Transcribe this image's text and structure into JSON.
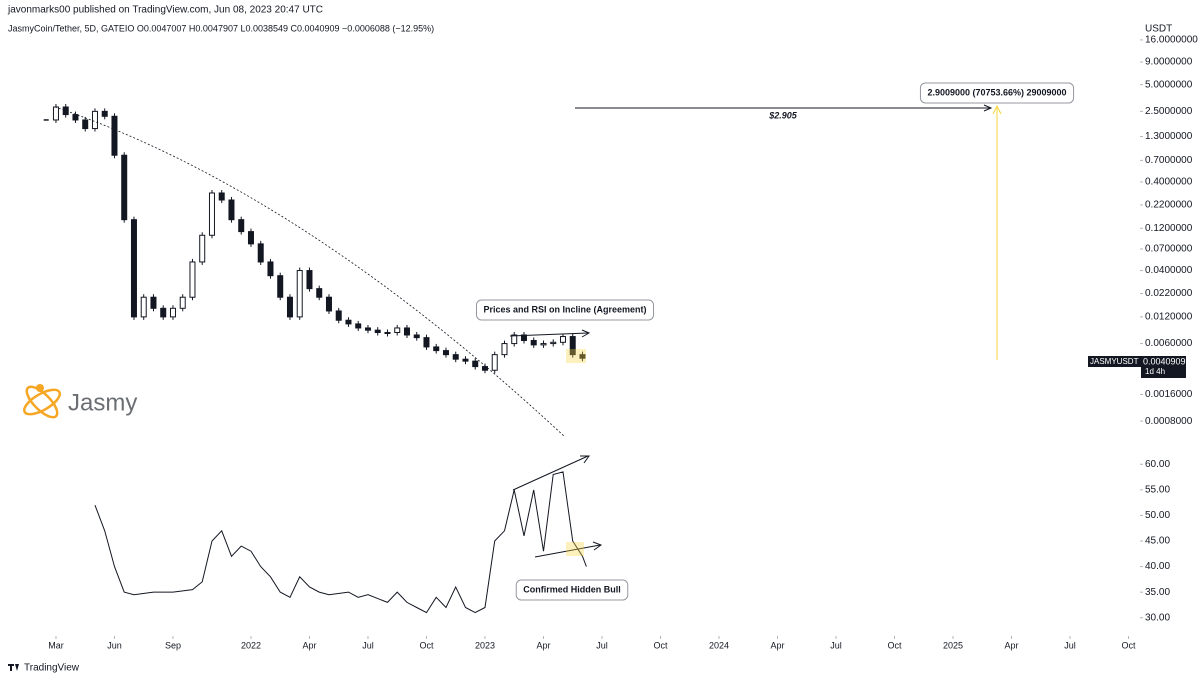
{
  "header": {
    "author_line": "javonmarks00 published on TradingView.com, Jun 08, 2023 20:47 UTC",
    "legend": "JasmyCoin/Tether, 5D, GATEIO  O0.0047007  H0.0047907  L0.0038549  C0.0040909  −0.0006088 (−12.95%)"
  },
  "logo": "Jasmy",
  "footer": "TradingView",
  "chart_data": [
    {
      "type": "candlestick",
      "axis_unit": "USDT",
      "log": true,
      "symbol_label": "JASMYUSDT",
      "last_value_label": "0.0040909",
      "countdown": "1d 4h",
      "x": [
        -0.5,
        0,
        0.5,
        1,
        1.5,
        2,
        2.5,
        3,
        3.5,
        4,
        4.5,
        5,
        5.5,
        6,
        6.5,
        7,
        7.5,
        8,
        8.5,
        9,
        9.5,
        10,
        10.5,
        11,
        11.5,
        12,
        12.5,
        13,
        13.5,
        14,
        14.5,
        15,
        15.5,
        16,
        16.5,
        17,
        17.5,
        18,
        18.5,
        19,
        19.5,
        20,
        20.5,
        21,
        21.5,
        22,
        22.5,
        23,
        23.5,
        24,
        24.5,
        25,
        25.5,
        26,
        26.5,
        27
      ],
      "series": [
        {
          "name": "JASMYUSDT",
          "color": "#131722",
          "values": [
            2.0,
            2.8,
            2.3,
            2.0,
            1.6,
            2.5,
            2.2,
            0.8,
            0.15,
            0.012,
            0.02,
            0.015,
            0.012,
            0.015,
            0.02,
            0.05,
            0.1,
            0.3,
            0.25,
            0.15,
            0.11,
            0.08,
            0.05,
            0.035,
            0.02,
            0.012,
            0.04,
            0.025,
            0.02,
            0.014,
            0.011,
            0.01,
            0.009,
            0.0085,
            0.008,
            0.008,
            0.009,
            0.0075,
            0.007,
            0.0055,
            0.005,
            0.0045,
            0.004,
            0.0038,
            0.0033,
            0.003,
            0.0045,
            0.006,
            0.0075,
            0.0065,
            0.0058,
            0.006,
            0.0062,
            0.0072,
            0.0045,
            0.0041
          ]
        }
      ],
      "xlim": [
        -2.87,
        55.59
      ],
      "ylim": [
        0.00049,
        20.7
      ],
      "yticks": [
        {
          "value": 16,
          "label": "16.0000000"
        },
        {
          "value": 9,
          "label": "9.0000000"
        },
        {
          "value": 5,
          "label": "5.0000000"
        },
        {
          "value": 2.5,
          "label": "2.5000000"
        },
        {
          "value": 1.3,
          "label": "1.3000000"
        },
        {
          "value": 0.7,
          "label": "0.7000000"
        },
        {
          "value": 0.4,
          "label": "0.4000000"
        },
        {
          "value": 0.22,
          "label": "0.2200000"
        },
        {
          "value": 0.12,
          "label": "0.1200000"
        },
        {
          "value": 0.07,
          "label": "0.0700000"
        },
        {
          "value": 0.04,
          "label": "0.0400000"
        },
        {
          "value": 0.022,
          "label": "0.0220000"
        },
        {
          "value": 0.012,
          "label": "0.0120000"
        },
        {
          "value": 0.006,
          "label": "0.0060000"
        },
        {
          "value": 0.0016,
          "label": "0.0016000"
        },
        {
          "value": 0.0008,
          "label": "0.0008000"
        }
      ],
      "annotations": [
        "Prices and RSI on Incline (Agreement)",
        "$2.905",
        "2.9009000 (70753.66%) 29009000"
      ]
    },
    {
      "type": "line",
      "x": [
        2,
        2.5,
        3,
        3.5,
        4,
        5,
        6,
        7,
        7.5,
        8,
        8.5,
        9,
        9.5,
        10,
        10.5,
        11,
        11.5,
        12,
        12.5,
        13,
        13.5,
        14,
        15,
        15.5,
        16,
        17,
        17.5,
        18,
        18.5,
        19,
        19.5,
        20,
        20.5,
        21,
        21.5,
        22,
        22.5,
        23,
        23.5,
        24,
        24.5,
        25,
        25.5,
        26,
        26.5,
        27,
        27.2
      ],
      "series": [
        {
          "name": "RSI",
          "color": "#131722",
          "values": [
            52,
            47,
            40,
            35,
            34.5,
            35,
            35,
            35.5,
            37,
            45,
            47,
            42,
            44,
            43,
            40,
            38,
            35,
            34,
            38,
            36,
            35,
            34.5,
            35,
            34,
            34.5,
            33,
            35,
            33,
            32,
            31,
            34,
            32,
            36,
            32,
            31,
            32,
            45,
            47,
            55,
            46,
            55,
            43,
            58,
            58.5,
            45,
            42,
            40
          ]
        }
      ],
      "xlim": [
        -2.87,
        55.59
      ],
      "ylim": [
        27.6,
        62.4
      ],
      "yticks": [
        {
          "value": 60,
          "label": "60.00"
        },
        {
          "value": 55,
          "label": "55.00"
        },
        {
          "value": 50,
          "label": "50.00"
        },
        {
          "value": 45,
          "label": "45.00"
        },
        {
          "value": 40,
          "label": "40.00"
        },
        {
          "value": 35,
          "label": "35.00"
        },
        {
          "value": 30,
          "label": "30.00"
        }
      ],
      "xticks": [
        {
          "value": 0,
          "label": "Mar"
        },
        {
          "value": 3,
          "label": "Jun"
        },
        {
          "value": 6,
          "label": "Sep"
        },
        {
          "value": 10,
          "label": "2022"
        },
        {
          "value": 13,
          "label": "Apr"
        },
        {
          "value": 16,
          "label": "Jul"
        },
        {
          "value": 19,
          "label": "Oct"
        },
        {
          "value": 22,
          "label": "2023"
        },
        {
          "value": 25,
          "label": "Apr"
        },
        {
          "value": 28,
          "label": "Jul"
        },
        {
          "value": 31,
          "label": "Oct"
        },
        {
          "value": 34,
          "label": "2024"
        },
        {
          "value": 37,
          "label": "Apr"
        },
        {
          "value": 40,
          "label": "Jul"
        },
        {
          "value": 43,
          "label": "Oct"
        },
        {
          "value": 46,
          "label": "2025"
        },
        {
          "value": 49,
          "label": "Apr"
        },
        {
          "value": 52,
          "label": "Jul"
        },
        {
          "value": 55,
          "label": "Oct"
        }
      ],
      "annotations": [
        "Confirmed Hidden Bull"
      ]
    }
  ]
}
